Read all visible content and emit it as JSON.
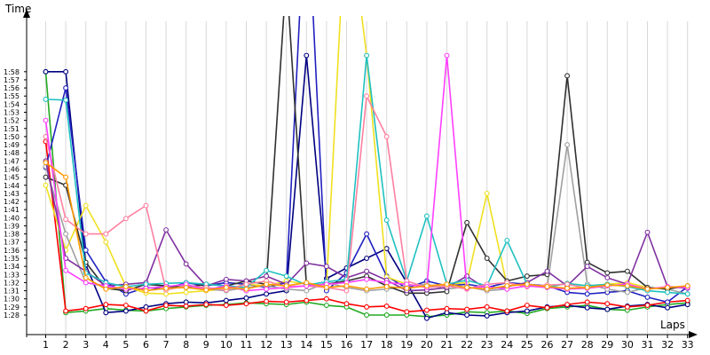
{
  "chart_data": {
    "type": "line",
    "xlabel": "Laps",
    "ylabel": "Time",
    "x": [
      1,
      2,
      3,
      4,
      5,
      6,
      7,
      8,
      9,
      10,
      11,
      12,
      13,
      14,
      15,
      16,
      17,
      18,
      19,
      20,
      21,
      22,
      23,
      24,
      25,
      26,
      27,
      28,
      29,
      30,
      31,
      32,
      33
    ],
    "x_tick_labels": [
      "1",
      "2",
      "3",
      "4",
      "5",
      "6",
      "7",
      "8",
      "9",
      "10",
      "11",
      "12",
      "13",
      "14",
      "15",
      "16",
      "17",
      "18",
      "19",
      "20",
      "21",
      "22",
      "23",
      "24",
      "25",
      "26",
      "27",
      "28",
      "29",
      "30",
      "31",
      "32",
      "33"
    ],
    "y_tick_labels": [
      "1:28",
      "1:29",
      "1:30",
      "1:31",
      "1:32",
      "1:33",
      "1:34",
      "1:35",
      "1:36",
      "1:37",
      "1:38",
      "1:39",
      "1:40",
      "1:41",
      "1:42",
      "1:43",
      "1:44",
      "1:45",
      "1:46",
      "1:47",
      "1:48",
      "1:49",
      "1:50",
      "1:51",
      "1:52",
      "1:53",
      "1:54",
      "1:55",
      "1:56",
      "1:57",
      "1:58"
    ],
    "y_unit": "seconds",
    "ylim": [
      87,
      119
    ],
    "xlim": [
      0,
      33
    ],
    "grid": {
      "vertical": true,
      "horizontal": false
    },
    "legend": "none",
    "series": [
      {
        "color": "#22aa22",
        "values": [
          118,
          88.3,
          88.5,
          88.8,
          88.6,
          88.5,
          88.8,
          89,
          89.2,
          89.3,
          89.5,
          89.4,
          89.3,
          89.6,
          89.2,
          89,
          88,
          88,
          88,
          87.8,
          88,
          88.4,
          88.3,
          88.5,
          88.2,
          88.8,
          89,
          89.2,
          88.7,
          88.6,
          89,
          89.3,
          89.5
        ]
      },
      {
        "color": "#000080",
        "values": [
          118,
          118,
          94.2,
          88.3,
          88.5,
          89,
          89.4,
          89.6,
          89.5,
          89.8,
          90.1,
          90.6,
          91,
          120,
          92.5,
          93.8,
          95,
          96.2,
          92,
          87.6,
          88.3,
          88,
          87.9,
          88.3,
          88.5,
          89,
          89.2,
          88.9,
          88.7,
          89.1,
          89.3,
          88.9,
          89.3
        ]
      },
      {
        "color": "#ff0000",
        "values": [
          109.4,
          88.5,
          88.8,
          89.3,
          89.2,
          88.5,
          89.2,
          89.1,
          89.3,
          89.2,
          89.4,
          89.7,
          89.6,
          89.8,
          90,
          89.4,
          89,
          89.1,
          88.4,
          88.6,
          88.8,
          88.7,
          89,
          88.5,
          89.2,
          88.9,
          89.3,
          89.6,
          89.4,
          89,
          89.2,
          89.6,
          89.8
        ]
      },
      {
        "color": "#2020c0",
        "values": [
          106.2,
          116,
          96,
          92.1,
          90.6,
          91.4,
          91.2,
          92,
          91.6,
          92,
          91.8,
          91.4,
          92,
          142,
          91,
          93.2,
          98,
          92.8,
          91.3,
          92.2,
          91.6,
          91.8,
          91.4,
          92,
          91.8,
          91.6,
          90.8,
          90.6,
          90.8,
          91,
          90.2,
          89.6,
          91.5
        ]
      },
      {
        "color": "#f0e020",
        "values": [
          104,
          96,
          101.5,
          97,
          91.5,
          90.7,
          90.6,
          90.8,
          91,
          91.2,
          91.8,
          91.6,
          92.2,
          91.8,
          91.5,
          140,
          120,
          92.7,
          91.8,
          91.5,
          91.8,
          92,
          103,
          91.6,
          91.8,
          91.5,
          91.9,
          91.6,
          91.8,
          92,
          91.4,
          91.2,
          91.6
        ]
      },
      {
        "color": "#a0a0a0",
        "values": [
          106.3,
          98,
          92,
          91.5,
          91,
          91.8,
          91.5,
          91.6,
          91.2,
          91,
          91.4,
          91.6,
          91.2,
          91,
          92,
          91.4,
          91,
          91.2,
          91.6,
          91.8,
          91.2,
          91.5,
          91,
          91.2,
          91.6,
          91.4,
          109,
          91.8,
          91.2,
          90.8,
          91.4,
          91.2,
          90.6
        ]
      },
      {
        "color": "#303030",
        "values": [
          105,
          104,
          94.5,
          91.3,
          91,
          91.8,
          91.6,
          91.4,
          91.8,
          91.6,
          92.2,
          91.8,
          130,
          91.6,
          91.8,
          92.2,
          92.8,
          91.6,
          90.7,
          90.7,
          90.9,
          99.4,
          95,
          92.2,
          92.8,
          93,
          117.5,
          94.5,
          93.2,
          93.4,
          91.4,
          91.2,
          91.6
        ]
      },
      {
        "color": "#8030a0",
        "values": [
          107,
          95,
          93.4,
          91.6,
          91.8,
          92,
          98.5,
          94.3,
          91.6,
          92.4,
          92.2,
          92.8,
          91.8,
          94.4,
          94,
          92.6,
          93.4,
          92.3,
          91,
          91.1,
          91.4,
          92.8,
          91.2,
          91.5,
          92,
          93.4,
          91.6,
          94,
          92.6,
          91.8,
          98.2,
          91.5,
          91.3
        ]
      },
      {
        "color": "#20c0c0",
        "values": [
          114.6,
          114.5,
          93.2,
          92,
          91.5,
          91.8,
          91.9,
          92,
          91.8,
          91.6,
          91.4,
          93.5,
          92.8,
          91.7,
          92.1,
          92.4,
          120,
          99.7,
          92.2,
          100.2,
          91.8,
          92.3,
          91.6,
          97.2,
          91.8,
          91.4,
          91.9,
          91.6,
          91.8,
          91.5,
          91,
          90.8,
          90.6
        ]
      },
      {
        "color": "#ff80a0",
        "values": [
          110,
          99.8,
          98,
          98,
          99.9,
          101.5,
          91.1,
          91.6,
          91.4,
          91.1,
          91.8,
          92.2,
          91.5,
          91.6,
          91.4,
          91,
          115,
          110,
          92.2,
          91.4,
          91.6,
          91.2,
          91.8,
          92,
          91.5,
          91.7,
          91.8,
          91.3,
          91.6,
          91.8,
          91.2,
          91.5,
          91.4
        ]
      },
      {
        "color": "#ff40ff",
        "values": [
          112,
          93.5,
          92,
          91.6,
          91.2,
          91.3,
          91.5,
          91.8,
          91.1,
          91.6,
          91,
          91.2,
          91.4,
          91.6,
          91.8,
          92,
          92.4,
          92,
          91.8,
          91.4,
          120,
          91.3,
          91.5,
          91.2,
          91.6,
          91.4,
          91.2,
          91.3,
          91.6,
          91.8,
          91.2,
          91.5,
          91.4
        ]
      },
      {
        "color": "#ff9900",
        "values": [
          106.8,
          105,
          92.6,
          91.2,
          91.5,
          91,
          91.3,
          91.4,
          91.1,
          91.4,
          91.2,
          91.8,
          91.6,
          92,
          91.4,
          91.6,
          91.2,
          91.5,
          91.3,
          91.6,
          91.8,
          91.4,
          91.2,
          91.6,
          91.8,
          91.5,
          91.3,
          91.4,
          91.7,
          91.6,
          91.2,
          91.4,
          91.6
        ]
      }
    ]
  }
}
